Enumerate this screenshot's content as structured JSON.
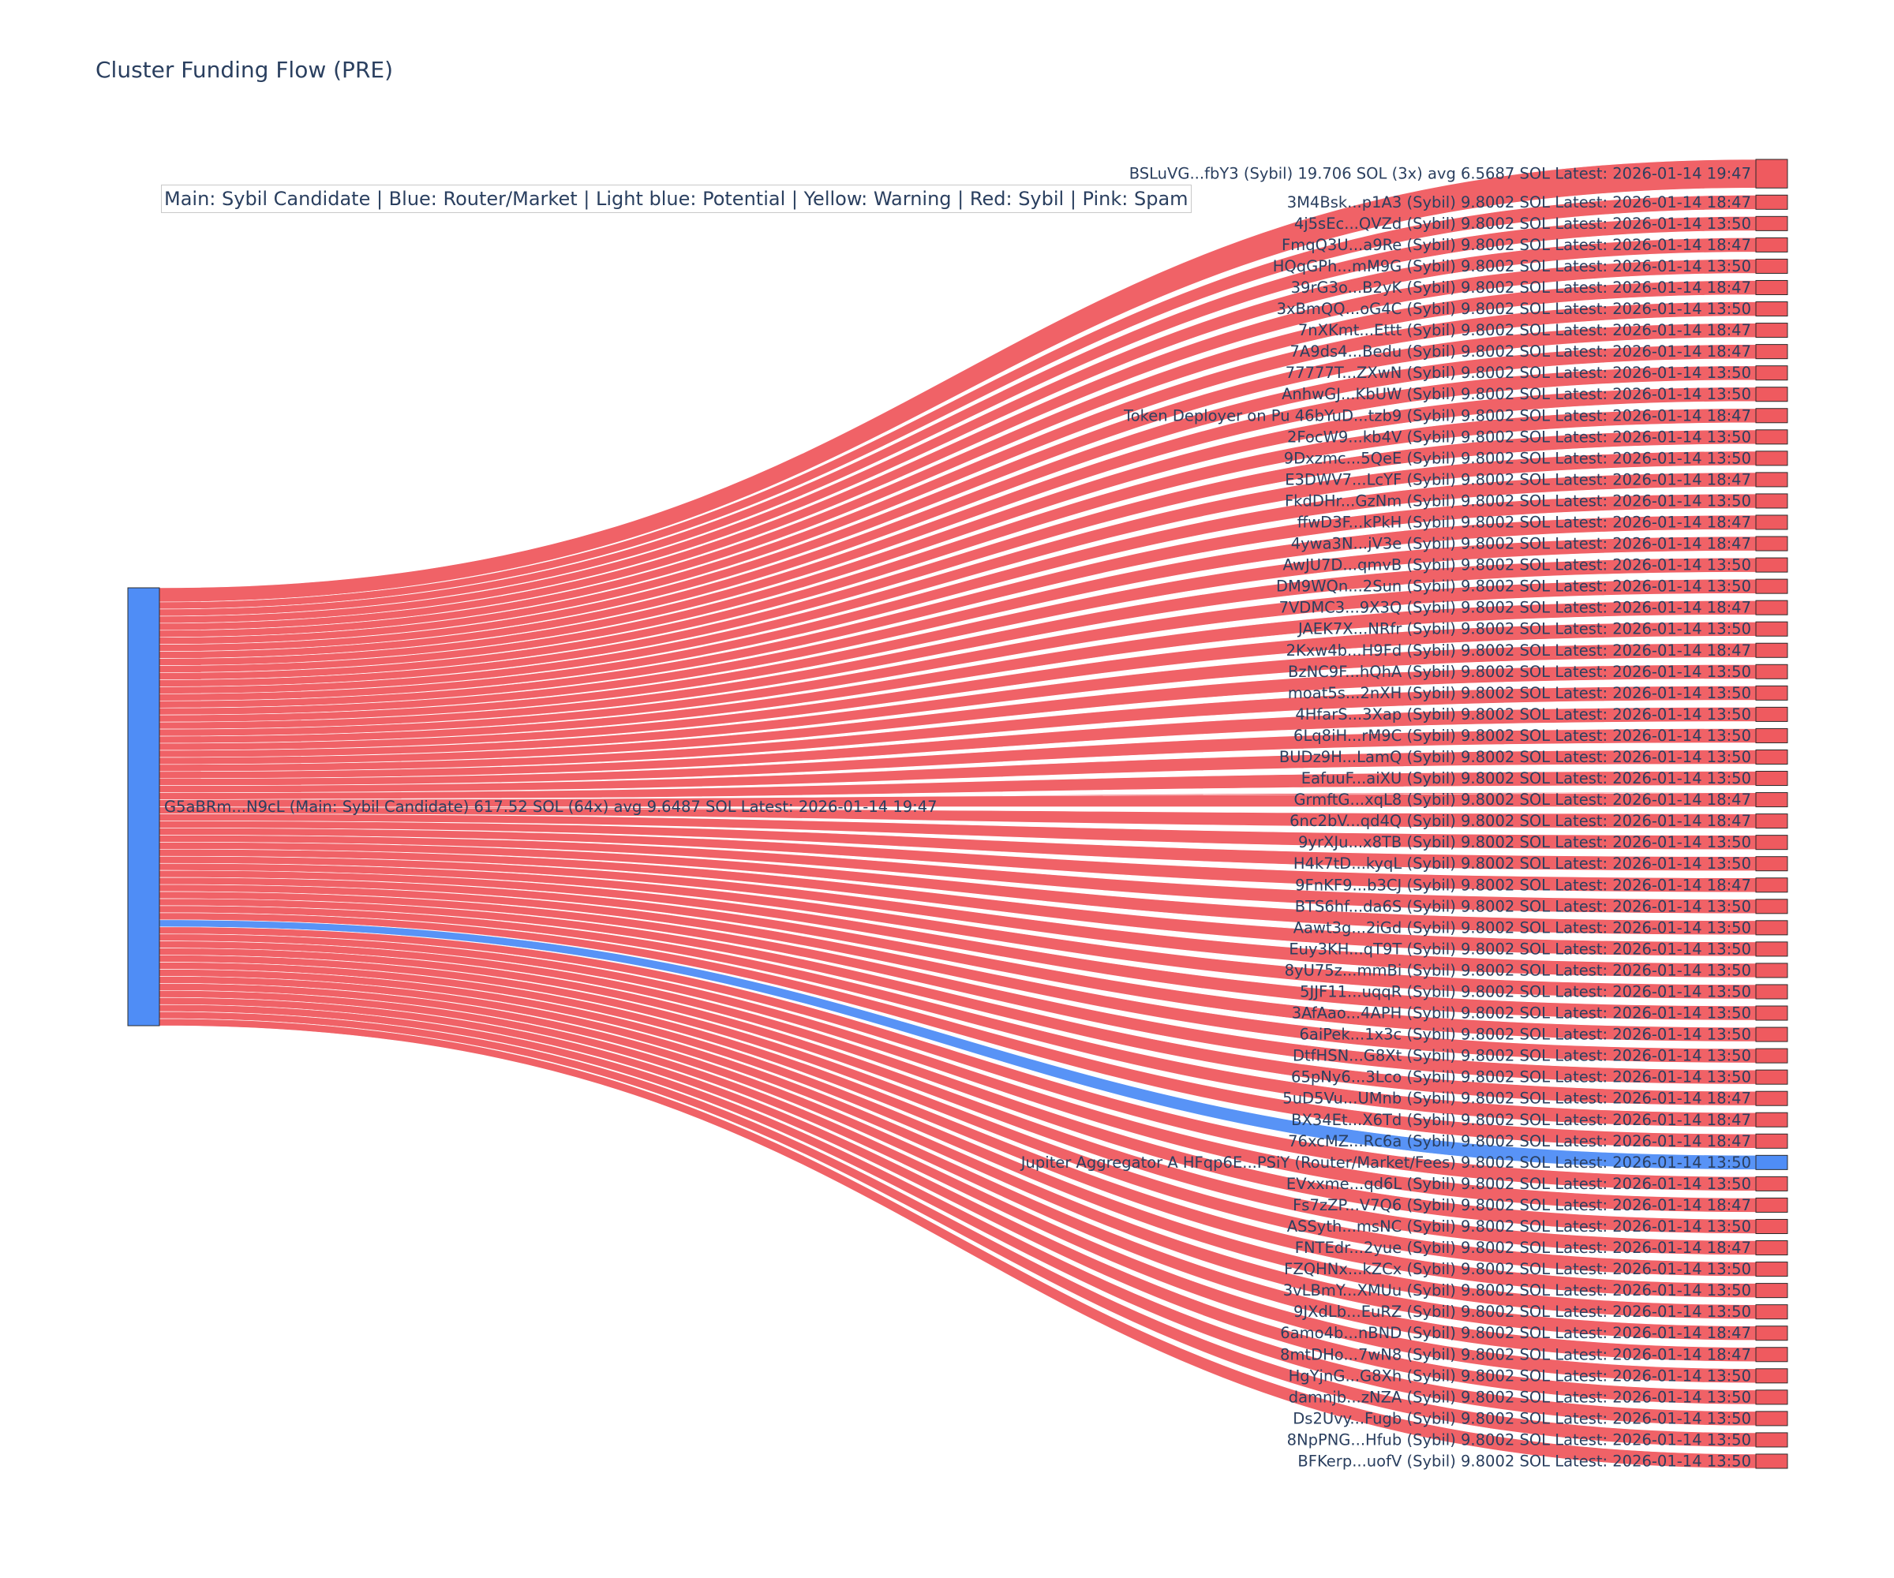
{
  "title": "Cluster Funding Flow (PRE)",
  "legend_text": "Main: Sybil Candidate  |  Blue: Router/Market | Light blue: Potential | Yellow: Warning | Red: Sybil | Pink: Spam",
  "colors": {
    "sybil": "#ef5a5f",
    "router": "#4f8df6",
    "main": "#4f8df6",
    "node_border": "#2b2b2b",
    "text": "#2a3f5f"
  },
  "chart_data": {
    "type": "sankey",
    "source": {
      "label": "G5aBRm...N9cL (Main: Sybil Candidate) 617.52 SOL (64x) avg 9.6487 SOL Latest: 2026-01-14 19:47",
      "category": "main",
      "value": 617.52
    },
    "targets": [
      {
        "label": "BSLuVG...fbY3 (Sybil) 19.706 SOL (3x) avg 6.5687 SOL Latest: 2026-01-14 19:47",
        "category": "sybil",
        "value": 19.706
      },
      {
        "label": "3M4Bsk...p1A3 (Sybil) 9.8002 SOL Latest: 2026-01-14 18:47",
        "category": "sybil",
        "value": 9.8002
      },
      {
        "label": "4j5sEc...QVZd (Sybil) 9.8002 SOL Latest: 2026-01-14 13:50",
        "category": "sybil",
        "value": 9.8002
      },
      {
        "label": "FmqQ3U...a9Re (Sybil) 9.8002 SOL Latest: 2026-01-14 18:47",
        "category": "sybil",
        "value": 9.8002
      },
      {
        "label": "HQqGPh...mM9G (Sybil) 9.8002 SOL Latest: 2026-01-14 13:50",
        "category": "sybil",
        "value": 9.8002
      },
      {
        "label": "39rG3o...B2yK (Sybil) 9.8002 SOL Latest: 2026-01-14 18:47",
        "category": "sybil",
        "value": 9.8002
      },
      {
        "label": "3xBmQQ...oG4C (Sybil) 9.8002 SOL Latest: 2026-01-14 13:50",
        "category": "sybil",
        "value": 9.8002
      },
      {
        "label": "7nXKmt...Ettt (Sybil) 9.8002 SOL Latest: 2026-01-14 18:47",
        "category": "sybil",
        "value": 9.8002
      },
      {
        "label": "7A9ds4...Bedu (Sybil) 9.8002 SOL Latest: 2026-01-14 18:47",
        "category": "sybil",
        "value": 9.8002
      },
      {
        "label": "77777T...ZXwN (Sybil) 9.8002 SOL Latest: 2026-01-14 13:50",
        "category": "sybil",
        "value": 9.8002
      },
      {
        "label": "AnhwGJ...KbUW (Sybil) 9.8002 SOL Latest: 2026-01-14 13:50",
        "category": "sybil",
        "value": 9.8002
      },
      {
        "label": "Token Deployer on Pu 46bYuD...tzb9 (Sybil) 9.8002 SOL Latest: 2026-01-14 18:47",
        "category": "sybil",
        "value": 9.8002
      },
      {
        "label": "2FocW9...kb4V (Sybil) 9.8002 SOL Latest: 2026-01-14 13:50",
        "category": "sybil",
        "value": 9.8002
      },
      {
        "label": "9Dxzmc...5QeE (Sybil) 9.8002 SOL Latest: 2026-01-14 13:50",
        "category": "sybil",
        "value": 9.8002
      },
      {
        "label": "E3DWV7...LcYF (Sybil) 9.8002 SOL Latest: 2026-01-14 18:47",
        "category": "sybil",
        "value": 9.8002
      },
      {
        "label": "FkdDHr...GzNm (Sybil) 9.8002 SOL Latest: 2026-01-14 13:50",
        "category": "sybil",
        "value": 9.8002
      },
      {
        "label": "ffwD3F...kPkH (Sybil) 9.8002 SOL Latest: 2026-01-14 18:47",
        "category": "sybil",
        "value": 9.8002
      },
      {
        "label": "4ywa3N...jV3e (Sybil) 9.8002 SOL Latest: 2026-01-14 18:47",
        "category": "sybil",
        "value": 9.8002
      },
      {
        "label": "AwJU7D...qmvB (Sybil) 9.8002 SOL Latest: 2026-01-14 13:50",
        "category": "sybil",
        "value": 9.8002
      },
      {
        "label": "DM9WQn...2Sun (Sybil) 9.8002 SOL Latest: 2026-01-14 13:50",
        "category": "sybil",
        "value": 9.8002
      },
      {
        "label": "7VDMC3...9X3Q (Sybil) 9.8002 SOL Latest: 2026-01-14 18:47",
        "category": "sybil",
        "value": 9.8002
      },
      {
        "label": "JAEK7X...NRfr (Sybil) 9.8002 SOL Latest: 2026-01-14 13:50",
        "category": "sybil",
        "value": 9.8002
      },
      {
        "label": "2Kxw4b...H9Fd (Sybil) 9.8002 SOL Latest: 2026-01-14 18:47",
        "category": "sybil",
        "value": 9.8002
      },
      {
        "label": "BzNC9F...hQhA (Sybil) 9.8002 SOL Latest: 2026-01-14 13:50",
        "category": "sybil",
        "value": 9.8002
      },
      {
        "label": "moat5s...2nXH (Sybil) 9.8002 SOL Latest: 2026-01-14 13:50",
        "category": "sybil",
        "value": 9.8002
      },
      {
        "label": "4HfarS...3Xap (Sybil) 9.8002 SOL Latest: 2026-01-14 13:50",
        "category": "sybil",
        "value": 9.8002
      },
      {
        "label": "6Lq8iH...rM9C (Sybil) 9.8002 SOL Latest: 2026-01-14 13:50",
        "category": "sybil",
        "value": 9.8002
      },
      {
        "label": "BUDz9H...LamQ (Sybil) 9.8002 SOL Latest: 2026-01-14 13:50",
        "category": "sybil",
        "value": 9.8002
      },
      {
        "label": "EafuuF...aiXU (Sybil) 9.8002 SOL Latest: 2026-01-14 13:50",
        "category": "sybil",
        "value": 9.8002
      },
      {
        "label": "GrmftG...xqL8 (Sybil) 9.8002 SOL Latest: 2026-01-14 18:47",
        "category": "sybil",
        "value": 9.8002
      },
      {
        "label": "6nc2bV...qd4Q (Sybil) 9.8002 SOL Latest: 2026-01-14 18:47",
        "category": "sybil",
        "value": 9.8002
      },
      {
        "label": "9yrXJu...x8TB (Sybil) 9.8002 SOL Latest: 2026-01-14 13:50",
        "category": "sybil",
        "value": 9.8002
      },
      {
        "label": "H4k7tD...kyqL (Sybil) 9.8002 SOL Latest: 2026-01-14 13:50",
        "category": "sybil",
        "value": 9.8002
      },
      {
        "label": "9FnKF9...b3CJ (Sybil) 9.8002 SOL Latest: 2026-01-14 18:47",
        "category": "sybil",
        "value": 9.8002
      },
      {
        "label": "BTS6hf...da6S (Sybil) 9.8002 SOL Latest: 2026-01-14 13:50",
        "category": "sybil",
        "value": 9.8002
      },
      {
        "label": "Aawt3g...2iGd (Sybil) 9.8002 SOL Latest: 2026-01-14 13:50",
        "category": "sybil",
        "value": 9.8002
      },
      {
        "label": "Euy3KH...qT9T (Sybil) 9.8002 SOL Latest: 2026-01-14 13:50",
        "category": "sybil",
        "value": 9.8002
      },
      {
        "label": "8yU75z...mmBi (Sybil) 9.8002 SOL Latest: 2026-01-14 13:50",
        "category": "sybil",
        "value": 9.8002
      },
      {
        "label": "5JJF11...uqqR (Sybil) 9.8002 SOL Latest: 2026-01-14 13:50",
        "category": "sybil",
        "value": 9.8002
      },
      {
        "label": "3AfAao...4APH (Sybil) 9.8002 SOL Latest: 2026-01-14 13:50",
        "category": "sybil",
        "value": 9.8002
      },
      {
        "label": "6aiPek...1x3c (Sybil) 9.8002 SOL Latest: 2026-01-14 13:50",
        "category": "sybil",
        "value": 9.8002
      },
      {
        "label": "DtfHSN...G8Xt (Sybil) 9.8002 SOL Latest: 2026-01-14 13:50",
        "category": "sybil",
        "value": 9.8002
      },
      {
        "label": "65pNy6...3Lco (Sybil) 9.8002 SOL Latest: 2026-01-14 13:50",
        "category": "sybil",
        "value": 9.8002
      },
      {
        "label": "5uD5Vu...UMnb (Sybil) 9.8002 SOL Latest: 2026-01-14 18:47",
        "category": "sybil",
        "value": 9.8002
      },
      {
        "label": "BX34Et...X6Td (Sybil) 9.8002 SOL Latest: 2026-01-14 18:47",
        "category": "sybil",
        "value": 9.8002
      },
      {
        "label": "76xcMZ...Rc6a (Sybil) 9.8002 SOL Latest: 2026-01-14 18:47",
        "category": "sybil",
        "value": 9.8002
      },
      {
        "label": "Jupiter Aggregator A HFqp6E...PSiY (Router/Market/Fees) 9.8002 SOL Latest: 2026-01-14 13:50",
        "category": "router",
        "value": 9.8002
      },
      {
        "label": "EVxxme...qd6L (Sybil) 9.8002 SOL Latest: 2026-01-14 13:50",
        "category": "sybil",
        "value": 9.8002
      },
      {
        "label": "Fs7zZP...V7Q6 (Sybil) 9.8002 SOL Latest: 2026-01-14 18:47",
        "category": "sybil",
        "value": 9.8002
      },
      {
        "label": "ASSyth...msNC (Sybil) 9.8002 SOL Latest: 2026-01-14 13:50",
        "category": "sybil",
        "value": 9.8002
      },
      {
        "label": "FNTEdr...2yue (Sybil) 9.8002 SOL Latest: 2026-01-14 18:47",
        "category": "sybil",
        "value": 9.8002
      },
      {
        "label": "FZQHNx...kZCx (Sybil) 9.8002 SOL Latest: 2026-01-14 13:50",
        "category": "sybil",
        "value": 9.8002
      },
      {
        "label": "3vLBmY...XMUu (Sybil) 9.8002 SOL Latest: 2026-01-14 13:50",
        "category": "sybil",
        "value": 9.8002
      },
      {
        "label": "9JXdLb...EuRZ (Sybil) 9.8002 SOL Latest: 2026-01-14 13:50",
        "category": "sybil",
        "value": 9.8002
      },
      {
        "label": "6amo4b...nBND (Sybil) 9.8002 SOL Latest: 2026-01-14 18:47",
        "category": "sybil",
        "value": 9.8002
      },
      {
        "label": "8mtDHo...7wN8 (Sybil) 9.8002 SOL Latest: 2026-01-14 18:47",
        "category": "sybil",
        "value": 9.8002
      },
      {
        "label": "HgYjnG...G8Xh (Sybil) 9.8002 SOL Latest: 2026-01-14 13:50",
        "category": "sybil",
        "value": 9.8002
      },
      {
        "label": "damnjb...zNZA (Sybil) 9.8002 SOL Latest: 2026-01-14 13:50",
        "category": "sybil",
        "value": 9.8002
      },
      {
        "label": "Ds2Uvy...Fugb (Sybil) 9.8002 SOL Latest: 2026-01-14 13:50",
        "category": "sybil",
        "value": 9.8002
      },
      {
        "label": "8NpPNG...Hfub (Sybil) 9.8002 SOL Latest: 2026-01-14 13:50",
        "category": "sybil",
        "value": 9.8002
      },
      {
        "label": "BFKerp...uofV (Sybil) 9.8002 SOL Latest: 2026-01-14 13:50",
        "category": "sybil",
        "value": 9.8002
      }
    ]
  }
}
